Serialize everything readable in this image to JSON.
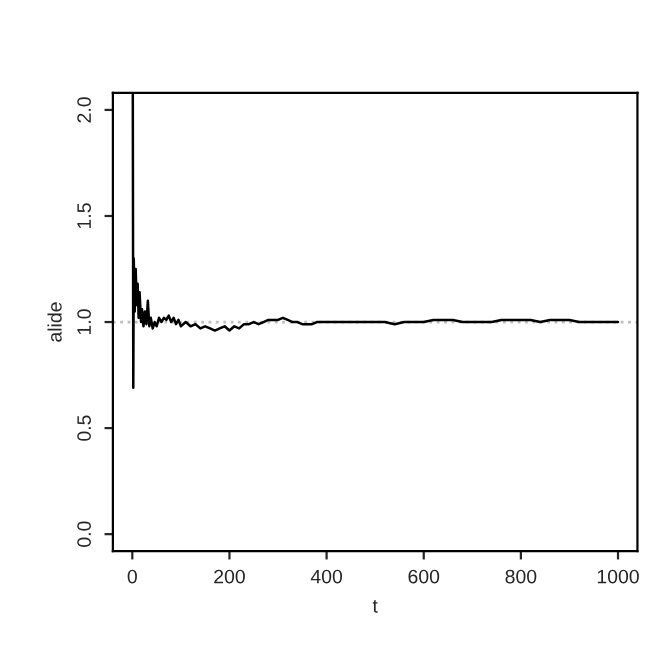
{
  "chart_data": {
    "type": "line",
    "xlabel": "t",
    "ylabel": "alide",
    "x": [
      1,
      2,
      3,
      5,
      7,
      9,
      11,
      13,
      15,
      18,
      20,
      23,
      26,
      29,
      32,
      35,
      38,
      42,
      46,
      50,
      55,
      60,
      65,
      70,
      75,
      80,
      85,
      90,
      95,
      100,
      110,
      120,
      130,
      140,
      150,
      160,
      170,
      180,
      190,
      200,
      210,
      220,
      230,
      240,
      250,
      260,
      270,
      280,
      290,
      300,
      310,
      320,
      330,
      340,
      350,
      360,
      370,
      380,
      400,
      420,
      440,
      460,
      480,
      500,
      520,
      540,
      560,
      580,
      600,
      620,
      640,
      660,
      680,
      700,
      720,
      740,
      760,
      780,
      800,
      820,
      840,
      860,
      880,
      900,
      920,
      940,
      960,
      980,
      1000
    ],
    "series": [
      {
        "color": "#000000",
        "values": [
          2.08,
          0.69,
          1.3,
          1.05,
          1.25,
          1.08,
          1.18,
          1.02,
          1.14,
          1.0,
          1.06,
          0.98,
          1.05,
          0.99,
          1.1,
          0.98,
          1.02,
          0.97,
          1.0,
          0.98,
          1.02,
          1.0,
          1.02,
          1.01,
          1.03,
          1.0,
          1.02,
          0.99,
          1.01,
          0.98,
          1.0,
          0.98,
          0.99,
          0.97,
          0.98,
          0.97,
          0.96,
          0.97,
          0.98,
          0.96,
          0.98,
          0.97,
          0.99,
          0.99,
          1.0,
          0.99,
          1.0,
          1.01,
          1.01,
          1.01,
          1.02,
          1.01,
          1.0,
          1.0,
          0.99,
          0.99,
          0.99,
          1.0,
          1.0,
          1.0,
          1.0,
          1.0,
          1.0,
          1.0,
          1.0,
          0.99,
          1.0,
          1.0,
          1.0,
          1.01,
          1.01,
          1.01,
          1.0,
          1.0,
          1.0,
          1.0,
          1.01,
          1.01,
          1.01,
          1.01,
          1.0,
          1.01,
          1.01,
          1.01,
          1.0,
          1.0,
          1.0,
          1.0,
          1.0
        ]
      }
    ],
    "xlim": [
      -40,
      1040
    ],
    "ylim": [
      -0.08,
      2.08
    ],
    "xticks": [
      0,
      200,
      400,
      600,
      800,
      1000
    ],
    "yticks": [
      {
        "value": 0,
        "label": "0.0"
      },
      {
        "value": 0.5,
        "label": "0.5"
      },
      {
        "value": 1,
        "label": "1.0"
      },
      {
        "value": 1.5,
        "label": "1.5"
      },
      {
        "value": 2,
        "label": "2.0"
      }
    ],
    "ref_lines": [
      {
        "axis": "y",
        "value": 1,
        "color": "#bebebe",
        "line_style": "dotted"
      }
    ],
    "grid": false,
    "legend": false
  }
}
